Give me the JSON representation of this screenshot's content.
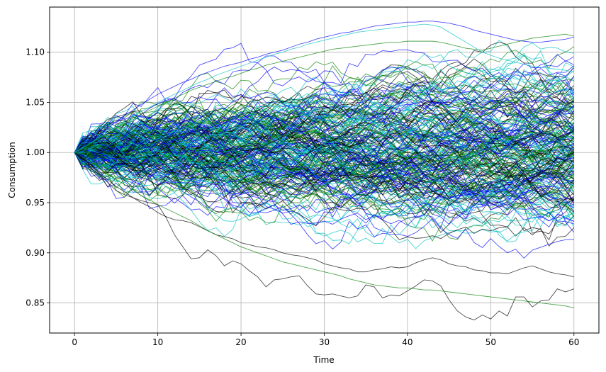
{
  "chart_data": {
    "type": "line",
    "title": "",
    "xlabel": "Time",
    "ylabel": "Consumption",
    "xlim": [
      -3,
      63
    ],
    "ylim": [
      0.82,
      1.145
    ],
    "x_ticks": [
      0,
      10,
      20,
      30,
      40,
      50,
      60
    ],
    "x_tick_labels": [
      "0",
      "10",
      "20",
      "30",
      "40",
      "50",
      "60"
    ],
    "y_ticks": [
      0.85,
      0.9,
      0.95,
      1.0,
      1.05,
      1.1
    ],
    "y_tick_labels": [
      "0.85",
      "0.90",
      "0.95",
      "1.00",
      "1.05",
      "1.10"
    ],
    "grid": true,
    "legend": "none",
    "x_start": 0,
    "x_end": 60,
    "initial_value": 1.0,
    "series_colors": [
      "#0000ff",
      "#00c0c0",
      "#008000",
      "#000000"
    ],
    "series": [
      {
        "color": "#000000",
        "values": [
          1.0,
          0.992,
          0.984,
          0.978,
          0.97,
          0.962,
          0.958,
          0.955,
          0.952,
          0.95,
          0.948,
          0.935,
          0.918,
          0.906,
          0.894,
          0.895,
          0.903,
          0.897,
          0.887,
          0.892,
          0.889,
          0.882,
          0.876,
          0.866,
          0.873,
          0.874,
          0.876,
          0.877,
          0.867,
          0.859,
          0.858,
          0.859,
          0.857,
          0.855,
          0.857,
          0.868,
          0.866,
          0.855,
          0.858,
          0.857,
          0.862,
          0.867,
          0.873,
          0.872,
          0.867,
          0.853,
          0.842,
          0.836,
          0.833,
          0.838,
          0.834,
          0.842,
          0.837,
          0.856,
          0.856,
          0.846,
          0.852,
          0.853,
          0.864,
          0.861,
          0.864
        ]
      },
      {
        "color": "#000000",
        "values": [
          1.0,
          0.994,
          0.987,
          0.979,
          0.973,
          0.966,
          0.961,
          0.955,
          0.95,
          0.946,
          0.94,
          0.936,
          0.933,
          0.932,
          0.93,
          0.926,
          0.922,
          0.918,
          0.916,
          0.914,
          0.91,
          0.908,
          0.906,
          0.905,
          0.903,
          0.9,
          0.898,
          0.897,
          0.895,
          0.893,
          0.889,
          0.887,
          0.885,
          0.884,
          0.881,
          0.881,
          0.883,
          0.884,
          0.886,
          0.885,
          0.886,
          0.89,
          0.893,
          0.895,
          0.893,
          0.889,
          0.887,
          0.886,
          0.883,
          0.882,
          0.88,
          0.88,
          0.879,
          0.882,
          0.885,
          0.887,
          0.884,
          0.881,
          0.879,
          0.878,
          0.876
        ]
      },
      {
        "color": "#008000",
        "values": [
          1.0,
          0.996,
          0.99,
          0.985,
          0.978,
          0.973,
          0.968,
          0.963,
          0.957,
          0.953,
          0.948,
          0.944,
          0.94,
          0.936,
          0.932,
          0.927,
          0.922,
          0.918,
          0.914,
          0.91,
          0.906,
          0.903,
          0.9,
          0.897,
          0.894,
          0.891,
          0.889,
          0.887,
          0.885,
          0.883,
          0.881,
          0.879,
          0.877,
          0.874,
          0.872,
          0.87,
          0.868,
          0.867,
          0.866,
          0.865,
          0.865,
          0.864,
          0.863,
          0.863,
          0.862,
          0.861,
          0.86,
          0.859,
          0.858,
          0.857,
          0.856,
          0.855,
          0.854,
          0.853,
          0.852,
          0.851,
          0.85,
          0.849,
          0.848,
          0.847,
          0.845
        ]
      },
      {
        "color": "#0000ff",
        "values": [
          1.0,
          1.006,
          1.012,
          1.018,
          1.024,
          1.031,
          1.037,
          1.042,
          1.048,
          1.053,
          1.058,
          1.062,
          1.066,
          1.07,
          1.073,
          1.077,
          1.08,
          1.083,
          1.086,
          1.088,
          1.09,
          1.093,
          1.095,
          1.098,
          1.1,
          1.102,
          1.105,
          1.108,
          1.11,
          1.113,
          1.115,
          1.117,
          1.119,
          1.12,
          1.122,
          1.124,
          1.126,
          1.127,
          1.128,
          1.129,
          1.13,
          1.13,
          1.131,
          1.131,
          1.13,
          1.129,
          1.127,
          1.125,
          1.122,
          1.12,
          1.118,
          1.116,
          1.114,
          1.112,
          1.111,
          1.11,
          1.11,
          1.111,
          1.112,
          1.113,
          1.115
        ]
      },
      {
        "color": "#008000",
        "values": [
          1.0,
          1.004,
          1.009,
          1.014,
          1.019,
          1.024,
          1.029,
          1.034,
          1.038,
          1.042,
          1.046,
          1.05,
          1.054,
          1.058,
          1.062,
          1.065,
          1.068,
          1.071,
          1.074,
          1.076,
          1.079,
          1.082,
          1.084,
          1.087,
          1.089,
          1.091,
          1.093,
          1.095,
          1.097,
          1.099,
          1.101,
          1.103,
          1.104,
          1.105,
          1.106,
          1.107,
          1.108,
          1.109,
          1.11,
          1.11,
          1.111,
          1.111,
          1.111,
          1.111,
          1.11,
          1.108,
          1.106,
          1.104,
          1.103,
          1.102,
          1.104,
          1.106,
          1.108,
          1.11,
          1.112,
          1.114,
          1.115,
          1.116,
          1.117,
          1.118,
          1.116
        ]
      },
      {
        "color": "#00c0c0",
        "values": [
          1.0,
          1.005,
          1.01,
          1.015,
          1.02,
          1.026,
          1.031,
          1.036,
          1.041,
          1.045,
          1.05,
          1.054,
          1.058,
          1.062,
          1.066,
          1.07,
          1.073,
          1.077,
          1.08,
          1.083,
          1.086,
          1.089,
          1.092,
          1.095,
          1.098,
          1.1,
          1.103,
          1.105,
          1.108,
          1.11,
          1.112,
          1.114,
          1.116,
          1.118,
          1.12,
          1.121,
          1.122,
          1.123,
          1.124,
          1.125,
          1.126,
          1.127,
          1.128,
          1.127,
          1.125,
          1.12,
          1.115,
          1.11,
          1.105,
          1.1,
          1.097,
          1.094,
          1.092,
          1.09,
          1.088,
          1.086,
          1.085,
          1.084,
          1.083,
          1.082,
          1.08
        ]
      }
    ]
  }
}
